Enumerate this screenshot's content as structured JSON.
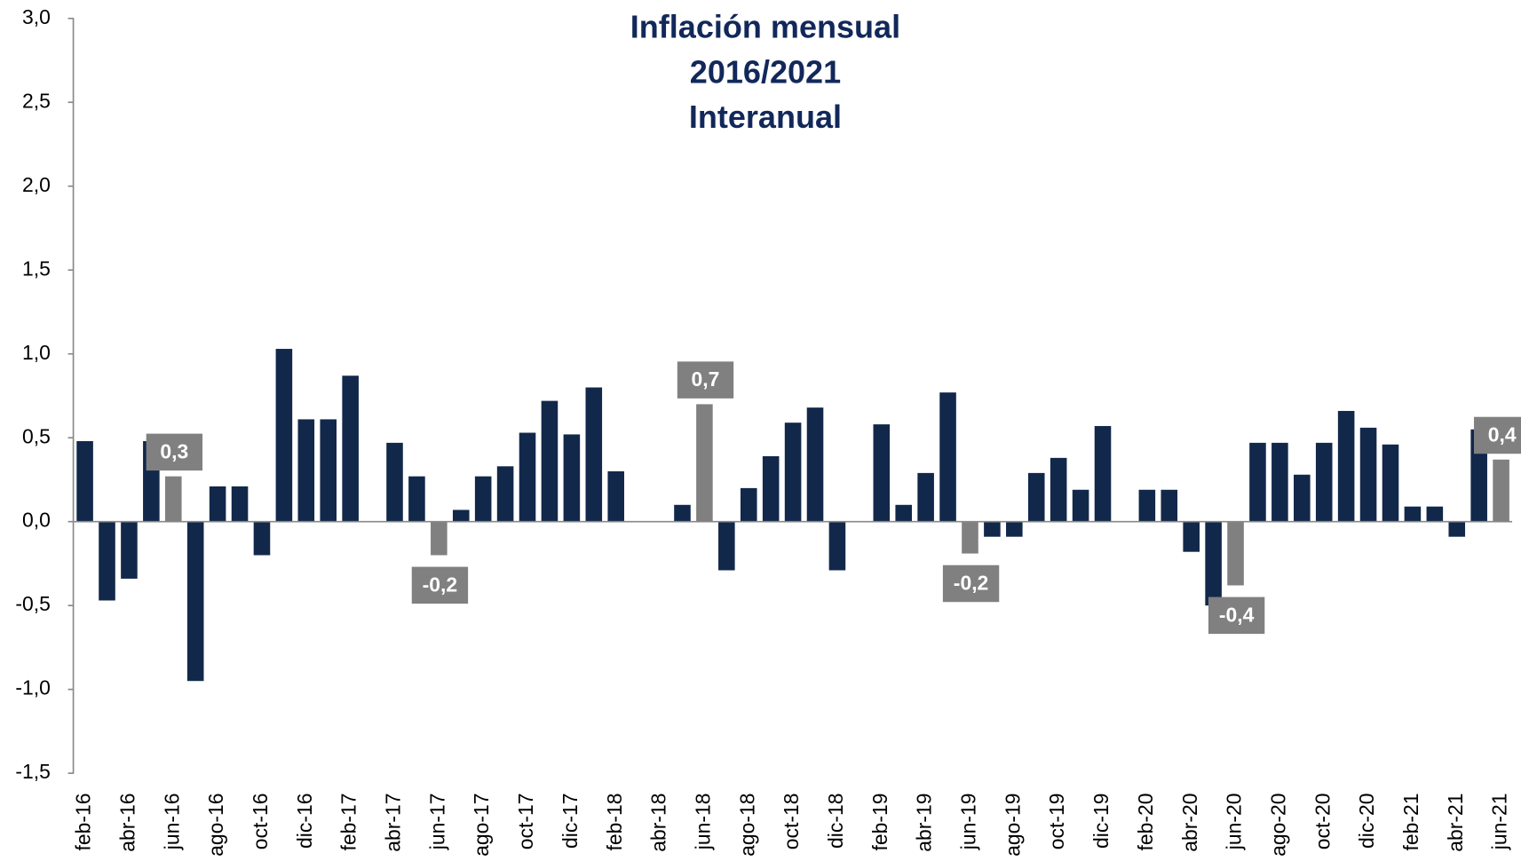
{
  "chart_data": {
    "type": "bar",
    "title": [
      "Inflación mensual",
      "2016/2021",
      "Interanual"
    ],
    "categories": [
      "feb-16",
      null,
      "abr-16",
      null,
      "jun-16",
      null,
      "ago-16",
      null,
      "oct-16",
      null,
      "dic-16",
      null,
      "feb-17",
      null,
      "abr-17",
      null,
      "jun-17",
      null,
      "ago-17",
      null,
      "oct-17",
      null,
      "dic-17",
      null,
      "feb-18",
      null,
      "abr-18",
      null,
      "jun-18",
      null,
      "ago-18",
      null,
      "oct-18",
      null,
      "dic-18",
      null,
      "feb-19",
      null,
      "abr-19",
      null,
      "jun-19",
      null,
      "ago-19",
      null,
      "oct-19",
      null,
      "dic-19",
      null,
      "feb-20",
      null,
      "abr-20",
      null,
      "jun-20",
      null,
      "ago-20",
      null,
      "oct-20",
      null,
      "dic-20",
      null,
      "feb-21",
      null,
      "abr-21",
      null,
      "jun-21"
    ],
    "values": [
      0.48,
      -0.47,
      -0.34,
      0.48,
      0.27,
      -0.95,
      0.21,
      0.21,
      -0.2,
      1.03,
      0.61,
      0.61,
      0.87,
      0,
      0.47,
      0.27,
      -0.2,
      0.07,
      0.27,
      0.33,
      0.53,
      0.72,
      0.52,
      0.8,
      0.3,
      0,
      0,
      0.1,
      0.7,
      -0.29,
      0.2,
      0.39,
      0.59,
      0.68,
      -0.29,
      0,
      0.58,
      0.1,
      0.29,
      0.77,
      -0.19,
      -0.09,
      -0.09,
      0.29,
      0.38,
      0.19,
      0.57,
      0,
      0.19,
      0.19,
      -0.18,
      -0.5,
      -0.38,
      0.47,
      0.47,
      0.28,
      0.47,
      0.66,
      0.56,
      0.46,
      0.09,
      0.09,
      -0.09,
      0.55,
      0.37
    ],
    "value_labels": [
      null,
      null,
      null,
      null,
      "0,3",
      null,
      null,
      null,
      null,
      null,
      null,
      null,
      null,
      null,
      null,
      null,
      "-0,2",
      null,
      null,
      null,
      null,
      null,
      null,
      null,
      null,
      null,
      null,
      null,
      "0,7",
      null,
      null,
      null,
      null,
      null,
      null,
      null,
      null,
      null,
      null,
      null,
      "-0,2",
      null,
      null,
      null,
      null,
      null,
      null,
      null,
      null,
      null,
      null,
      null,
      "-0,4",
      null,
      null,
      null,
      null,
      null,
      null,
      null,
      null,
      null,
      null,
      null,
      "0,4"
    ],
    "color": "#12284a",
    "label_color": "#808080",
    "ylim": [
      -1.5,
      3.0
    ],
    "yticks": [
      {
        "value": -1.5,
        "label": "-1,5"
      },
      {
        "value": -1.0,
        "label": "-1,0"
      },
      {
        "value": -0.5,
        "label": "-0,5"
      },
      {
        "value": 0.0,
        "label": "0,0"
      },
      {
        "value": 0.5,
        "label": "0,5"
      },
      {
        "value": 1.0,
        "label": "1,0"
      },
      {
        "value": 1.5,
        "label": "1,5"
      },
      {
        "value": 2.0,
        "label": "2,0"
      },
      {
        "value": 2.5,
        "label": "2,5"
      },
      {
        "value": 3.0,
        "label": "3,0"
      }
    ],
    "grid": false
  }
}
